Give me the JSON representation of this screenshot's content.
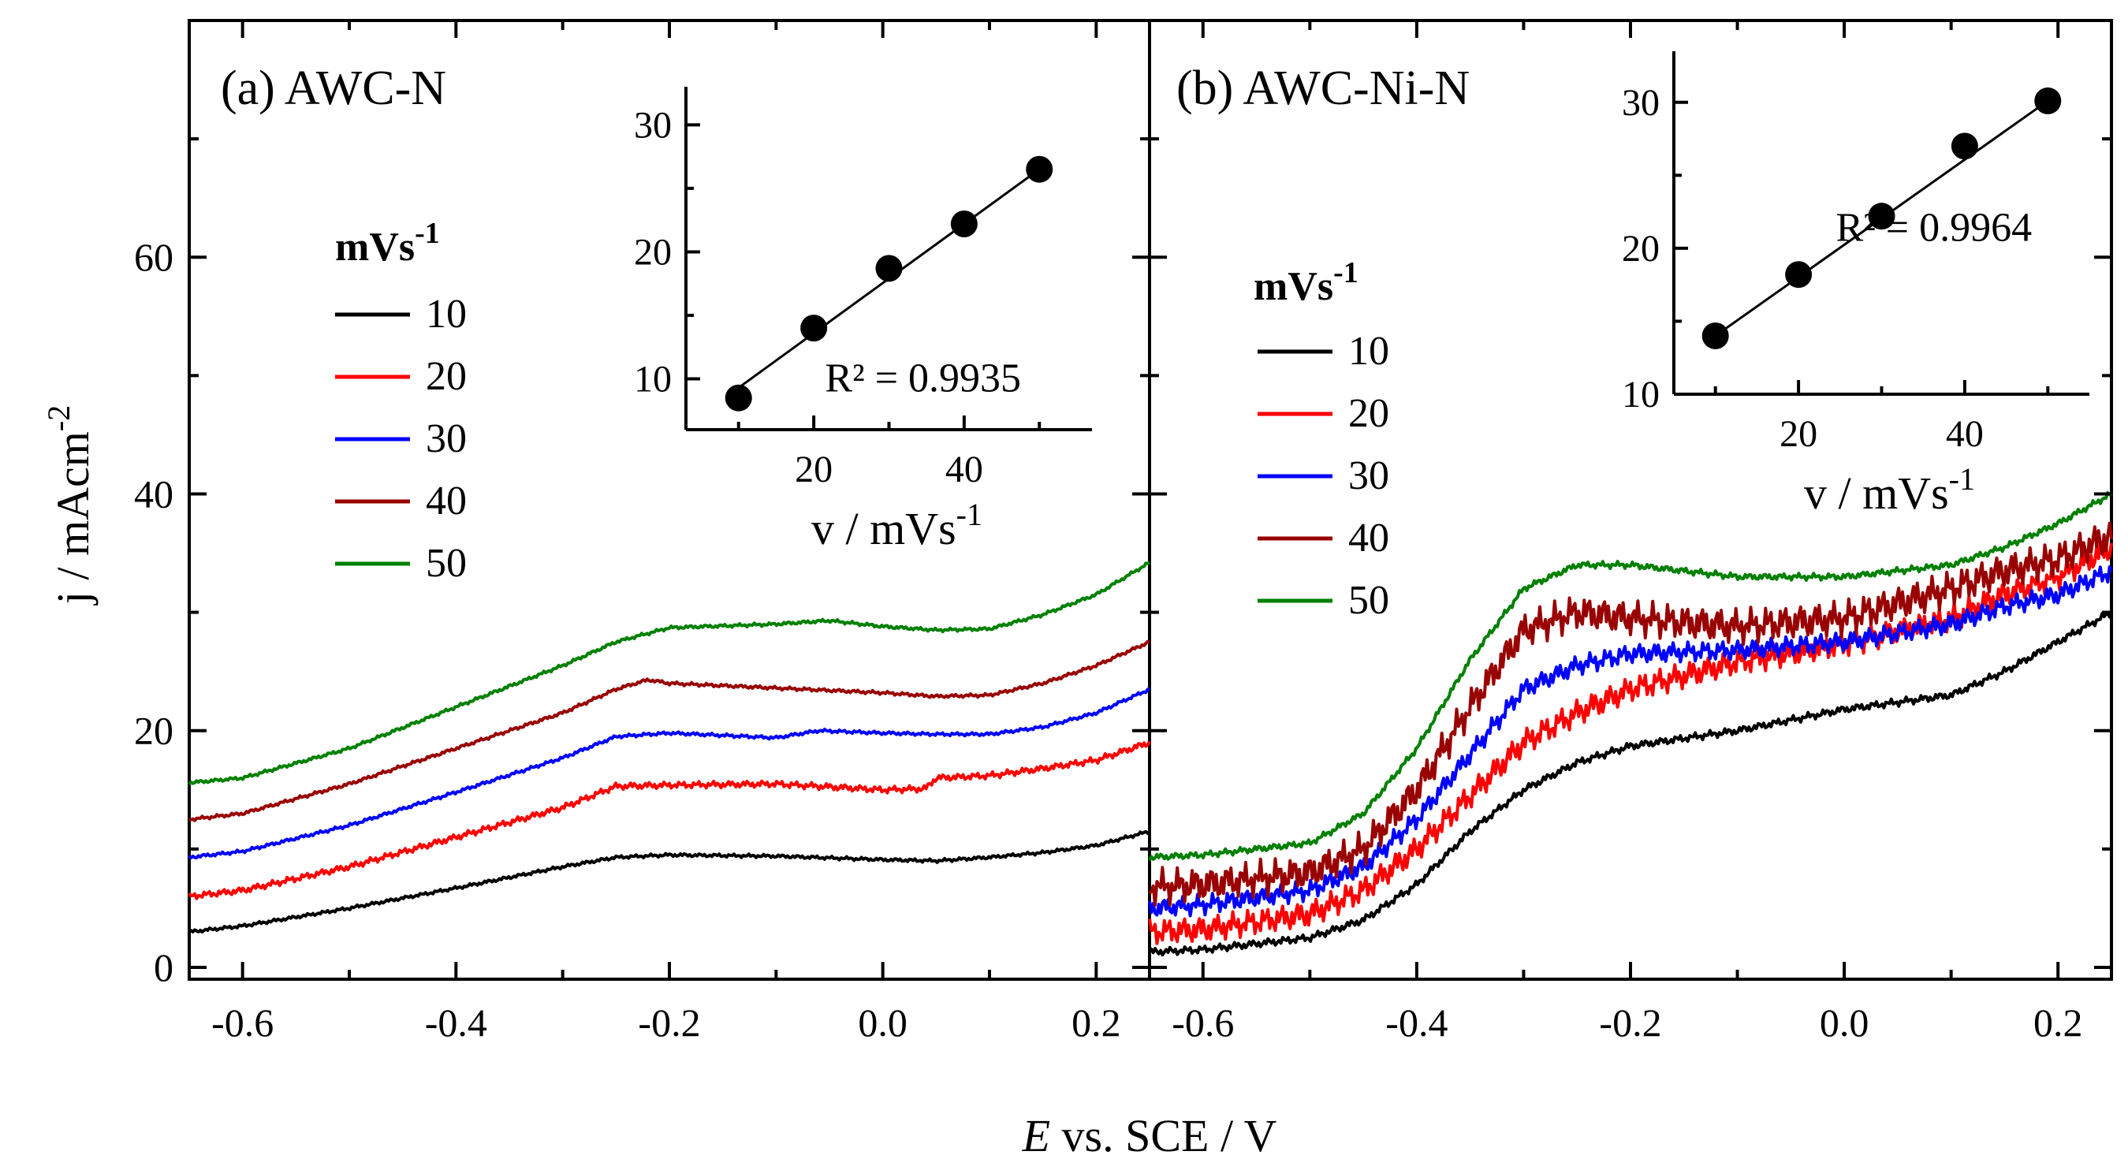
{
  "figure": {
    "ylabel": "j / mAcm",
    "ylabel_sup": "-2",
    "xlabel_italic": "E",
    "xlabel_rest": " vs. SCE / V"
  },
  "chart_data": [
    {
      "id": "a",
      "type": "line",
      "title": "(a) AWC-N",
      "xlabel": "E vs. SCE / V",
      "ylabel": "j / mAcm-2",
      "xlim": [
        -0.65,
        0.25
      ],
      "ylim": [
        -1,
        80
      ],
      "xticks": [
        -0.6,
        -0.4,
        -0.2,
        0.0,
        0.2
      ],
      "xtick_labels": [
        "-0.6",
        "-0.4",
        "-0.2",
        "0.0",
        "0.2"
      ],
      "yticks": [
        0,
        20,
        40,
        60
      ],
      "ytick_labels": [
        "0",
        "20",
        "40",
        "60"
      ],
      "legend": {
        "title": "mVs",
        "title_sup": "-1",
        "placement": "left"
      },
      "series": [
        {
          "name": "10",
          "color": "#000000",
          "noise": 0.15,
          "x": [
            -0.65,
            -0.6,
            -0.5,
            -0.4,
            -0.3,
            -0.25,
            -0.2,
            -0.1,
            0.0,
            0.05,
            0.1,
            0.15,
            0.2,
            0.25
          ],
          "y": [
            3.0,
            3.5,
            5.0,
            6.7,
            8.5,
            9.3,
            9.5,
            9.4,
            9.1,
            9.0,
            9.3,
            9.7,
            10.3,
            11.5
          ]
        },
        {
          "name": "20",
          "color": "#ff0000",
          "noise": 0.3,
          "x": [
            -0.65,
            -0.6,
            -0.5,
            -0.4,
            -0.3,
            -0.25,
            -0.2,
            -0.1,
            0.0,
            0.04,
            0.05,
            0.1,
            0.15,
            0.2,
            0.25
          ],
          "y": [
            6.0,
            6.5,
            8.5,
            11.0,
            13.5,
            15.3,
            15.4,
            15.5,
            15.0,
            15.1,
            16.0,
            16.2,
            16.8,
            17.5,
            19.0
          ]
        },
        {
          "name": "30",
          "color": "#0000ff",
          "noise": 0.15,
          "x": [
            -0.65,
            -0.6,
            -0.5,
            -0.4,
            -0.3,
            -0.25,
            -0.2,
            -0.1,
            -0.06,
            0.0,
            0.05,
            0.1,
            0.15,
            0.2,
            0.25
          ],
          "y": [
            9.3,
            9.8,
            12.0,
            14.8,
            17.7,
            19.5,
            19.8,
            19.4,
            20.0,
            19.8,
            19.7,
            19.7,
            20.3,
            21.5,
            23.5
          ]
        },
        {
          "name": "40",
          "color": "#990000",
          "noise": 0.15,
          "x": [
            -0.65,
            -0.6,
            -0.5,
            -0.4,
            -0.3,
            -0.25,
            -0.22,
            -0.2,
            -0.1,
            0.0,
            0.05,
            0.1,
            0.15,
            0.2,
            0.25
          ],
          "y": [
            12.5,
            13.0,
            15.5,
            18.5,
            21.5,
            23.5,
            24.3,
            24.0,
            23.6,
            23.2,
            22.9,
            23.0,
            24.0,
            25.5,
            27.5
          ]
        },
        {
          "name": "50",
          "color": "#008000",
          "noise": 0.15,
          "x": [
            -0.65,
            -0.6,
            -0.5,
            -0.4,
            -0.3,
            -0.25,
            -0.2,
            -0.1,
            -0.05,
            0.0,
            0.05,
            0.1,
            0.15,
            0.2,
            0.25
          ],
          "y": [
            15.6,
            16.0,
            18.5,
            22.0,
            25.5,
            27.5,
            28.7,
            29.0,
            29.3,
            28.8,
            28.5,
            28.6,
            29.8,
            31.5,
            34.2
          ]
        }
      ],
      "inset": {
        "xlabel": "v / mVs",
        "xlabel_sup": "-1",
        "xlim": [
          3,
          57
        ],
        "ylim": [
          6,
          33
        ],
        "xticks": [
          20,
          40
        ],
        "xtick_labels": [
          "20",
          "40"
        ],
        "yticks": [
          10,
          20,
          30
        ],
        "ytick_labels": [
          "10",
          "20",
          "30"
        ],
        "points_x": [
          10,
          20,
          30,
          40,
          50
        ],
        "points_y": [
          8.5,
          14.0,
          18.7,
          22.2,
          26.5
        ],
        "fit_x": [
          10,
          50
        ],
        "fit_y": [
          9.3,
          26.5
        ],
        "r2": "R² = 0.9935"
      }
    },
    {
      "id": "b",
      "type": "line",
      "title": "(b) AWC-Ni-N",
      "xlabel": "E vs. SCE / V",
      "ylabel": "j / mAcm-2",
      "xlim": [
        -0.65,
        0.25
      ],
      "ylim": [
        -1,
        80
      ],
      "xticks": [
        -0.6,
        -0.4,
        -0.2,
        0.0,
        0.2
      ],
      "xtick_labels": [
        "-0.6",
        "-0.4",
        "-0.2",
        "0.0",
        "0.2"
      ],
      "legend": {
        "title": "mVs",
        "title_sup": "-1",
        "placement": "left"
      },
      "series": [
        {
          "name": "10",
          "color": "#000000",
          "noise": 0.35,
          "x": [
            -0.65,
            -0.6,
            -0.5,
            -0.45,
            -0.4,
            -0.35,
            -0.3,
            -0.25,
            -0.2,
            -0.1,
            0.0,
            0.1,
            0.15,
            0.2,
            0.25
          ],
          "y": [
            1.3,
            1.5,
            2.5,
            4.0,
            7.0,
            11.5,
            15.0,
            17.3,
            18.7,
            20.0,
            21.8,
            23.0,
            25.0,
            27.5,
            30.0
          ]
        },
        {
          "name": "20",
          "color": "#ff0000",
          "noise": 1.2,
          "x": [
            -0.65,
            -0.6,
            -0.5,
            -0.45,
            -0.4,
            -0.35,
            -0.3,
            -0.25,
            -0.2,
            -0.1,
            0.0,
            0.1,
            0.15,
            0.2,
            0.25
          ],
          "y": [
            3.0,
            3.2,
            4.5,
            6.5,
            10.0,
            14.5,
            19.0,
            21.5,
            23.5,
            25.8,
            27.3,
            29.5,
            31.5,
            33.0,
            35.5
          ]
        },
        {
          "name": "30",
          "color": "#0000ff",
          "noise": 0.9,
          "x": [
            -0.65,
            -0.6,
            -0.5,
            -0.45,
            -0.4,
            -0.35,
            -0.3,
            -0.25,
            -0.2,
            -0.1,
            0.0,
            0.1,
            0.15,
            0.2,
            0.25
          ],
          "y": [
            5.0,
            5.3,
            6.5,
            8.5,
            12.5,
            18.0,
            23.5,
            25.5,
            26.5,
            26.8,
            27.5,
            29.0,
            30.5,
            31.5,
            33.5
          ]
        },
        {
          "name": "40",
          "color": "#990000",
          "noise": 1.6,
          "x": [
            -0.65,
            -0.6,
            -0.5,
            -0.45,
            -0.4,
            -0.35,
            -0.3,
            -0.25,
            -0.2,
            -0.1,
            0.0,
            0.1,
            0.15,
            0.2,
            0.25
          ],
          "y": [
            6.8,
            7.0,
            8.0,
            10.0,
            15.0,
            22.0,
            28.5,
            30.0,
            29.5,
            28.8,
            29.5,
            32.0,
            33.5,
            34.5,
            36.5
          ]
        },
        {
          "name": "50",
          "color": "#008000",
          "noise": 0.3,
          "x": [
            -0.65,
            -0.6,
            -0.5,
            -0.45,
            -0.4,
            -0.35,
            -0.3,
            -0.25,
            -0.2,
            -0.1,
            0.0,
            0.1,
            0.15,
            0.2,
            0.25
          ],
          "y": [
            9.3,
            9.5,
            10.5,
            13.0,
            18.5,
            26.0,
            32.0,
            34.0,
            34.0,
            33.0,
            33.0,
            34.0,
            35.5,
            37.5,
            40.0
          ]
        }
      ],
      "inset": {
        "xlabel": "v / mVs",
        "xlabel_sup": "-1",
        "xlim": [
          5,
          55
        ],
        "ylim": [
          10,
          33.5
        ],
        "xticks": [
          20,
          40
        ],
        "xtick_labels": [
          "20",
          "40"
        ],
        "yticks": [
          10,
          20,
          30
        ],
        "ytick_labels": [
          "10",
          "20",
          "30"
        ],
        "points_x": [
          10,
          20,
          30,
          40,
          50
        ],
        "points_y": [
          14.0,
          18.2,
          22.2,
          27.0,
          30.1
        ],
        "fit_x": [
          10,
          50
        ],
        "fit_y": [
          14.0,
          30.1
        ],
        "r2": "R² = 0.9964"
      }
    }
  ]
}
